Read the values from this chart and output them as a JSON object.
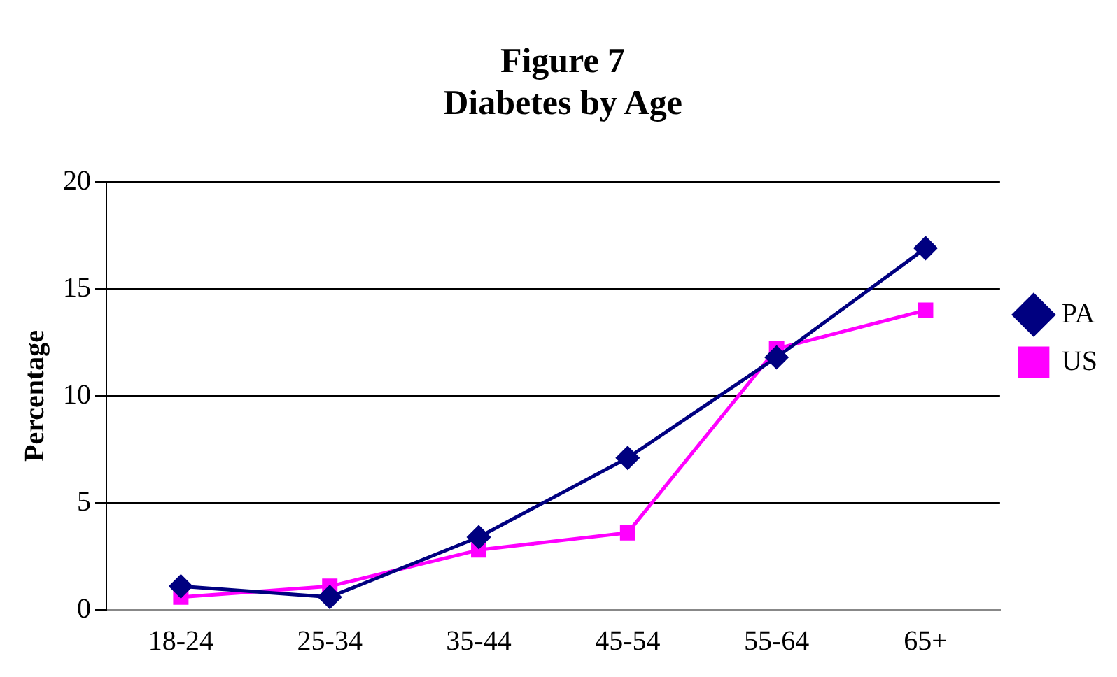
{
  "chart_data": {
    "type": "line",
    "title": "Figure 7\nDiabetes by Age",
    "ylabel": "Percentage",
    "categories": [
      "18-24",
      "25-34",
      "35-44",
      "45-54",
      "55-64",
      "65+"
    ],
    "series": [
      {
        "name": "PA",
        "color": "#000080",
        "marker": "diamond",
        "values": [
          1.1,
          0.6,
          3.4,
          7.1,
          11.8,
          16.9
        ]
      },
      {
        "name": "US",
        "color": "#ff00ff",
        "marker": "square",
        "values": [
          0.6,
          1.1,
          2.8,
          3.6,
          12.2,
          14.0
        ]
      }
    ],
    "ylim": [
      0,
      20
    ],
    "yticks": [
      0,
      5,
      10,
      15,
      20
    ],
    "grid": "y",
    "legend": "right",
    "line_style": "solid"
  }
}
